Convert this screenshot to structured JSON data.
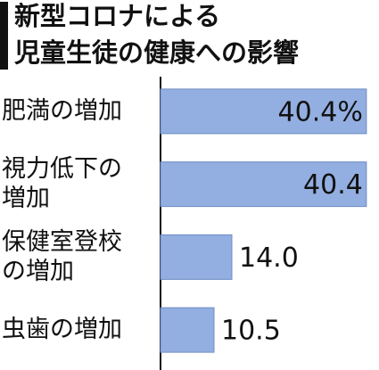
{
  "chart_data": {
    "type": "bar",
    "orientation": "horizontal",
    "title": [
      "新型コロナによる",
      "児童生徒の健康への影響"
    ],
    "categories": [
      "肥満の増加",
      "視力低下の増加",
      "保健室登校の増加",
      "虫歯の増加"
    ],
    "values": [
      40.4,
      40.4,
      14.0,
      10.5
    ],
    "value_labels": [
      "40.4%",
      "40.4",
      "14.0",
      "10.5"
    ],
    "color": "#93aee0",
    "xlim": [
      0,
      42
    ]
  }
}
